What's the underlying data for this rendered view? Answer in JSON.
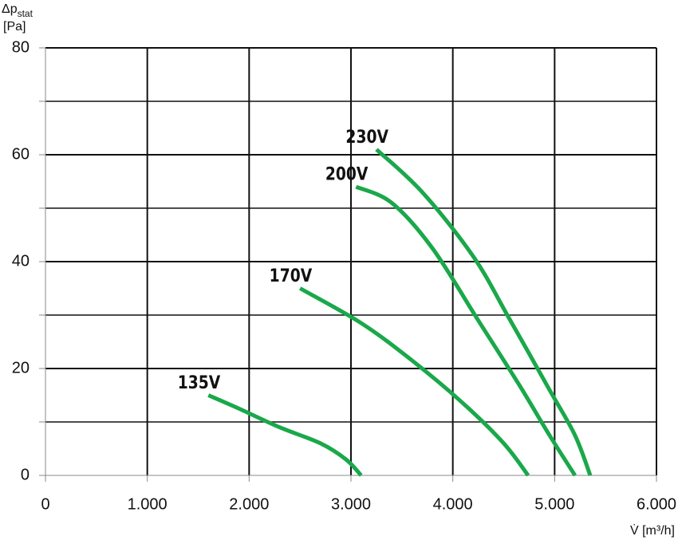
{
  "chart_data": {
    "type": "line",
    "ylabel": {
      "main": "Δp",
      "sub": "stat",
      "unit": "[Pa]"
    },
    "xlabel": "V̇ [m³/h]",
    "xlim": [
      0,
      6000
    ],
    "xticks": [
      0,
      {
        "value": 1000,
        "label": "1.000"
      },
      {
        "value": 2000,
        "label": "2.000"
      },
      {
        "value": 3000,
        "label": "3.000"
      },
      {
        "value": 4000,
        "label": "4.000"
      },
      {
        "value": 5000,
        "label": "5.000"
      },
      {
        "value": 6000,
        "label": "6.000"
      }
    ],
    "ylim": [
      0,
      80
    ],
    "yticks": [
      0,
      20,
      40,
      60,
      80
    ],
    "yminorticks": [
      10,
      30,
      50,
      70
    ],
    "grid": true,
    "series": [
      {
        "name": "135V",
        "color": "#1aa84a",
        "x": [
          1600,
          1900,
          2300,
          2700,
          2950,
          3100
        ],
        "values": [
          15,
          12.5,
          9,
          6,
          3,
          0
        ]
      },
      {
        "name": "170V",
        "color": "#1aa84a",
        "x": [
          2500,
          3100,
          3600,
          4100,
          4500,
          4740
        ],
        "values": [
          35,
          28.5,
          21.5,
          13.5,
          6,
          0
        ]
      },
      {
        "name": "200V",
        "color": "#1aa84a",
        "x": [
          3050,
          3400,
          3800,
          4250,
          4650,
          4950,
          5200
        ],
        "values": [
          54,
          51,
          42.5,
          29,
          17,
          7.5,
          0
        ]
      },
      {
        "name": "230V",
        "color": "#1aa84a",
        "x": [
          3250,
          3700,
          4200,
          4550,
          4950,
          5200,
          5350
        ],
        "values": [
          61,
          53,
          41,
          29.5,
          16,
          7.5,
          0
        ]
      }
    ]
  }
}
